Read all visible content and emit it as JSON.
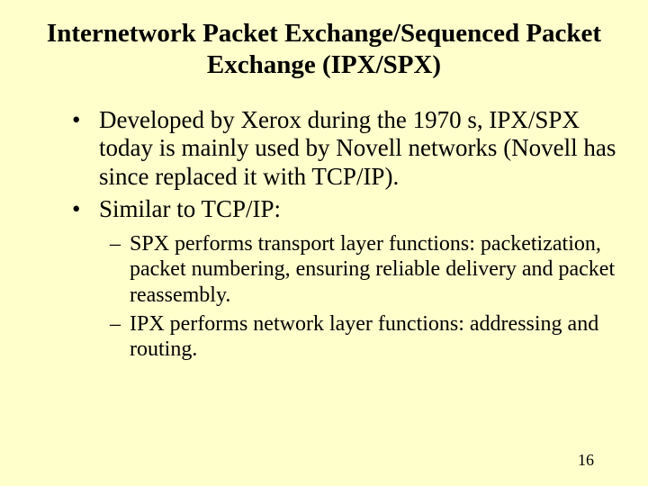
{
  "title": "Internetwork Packet Exchange/Sequenced Packet Exchange (IPX/SPX)",
  "bullets": [
    "Developed by Xerox during the 1970 s, IPX/SPX today is mainly used by Novell networks (Novell has since replaced it with TCP/IP).",
    "Similar to TCP/IP:"
  ],
  "subBullets": [
    "SPX performs transport layer functions: packetization, packet numbering, ensuring reliable delivery and packet reassembly.",
    "IPX performs network layer functions: addressing and routing."
  ],
  "pageNumber": "16",
  "colors": {
    "background": "#ffffcc",
    "text": "#000000"
  },
  "fonts": {
    "family": "Times New Roman",
    "titleSize": 29,
    "bulletSize": 27,
    "subBulletSize": 24,
    "pageNumSize": 18
  }
}
